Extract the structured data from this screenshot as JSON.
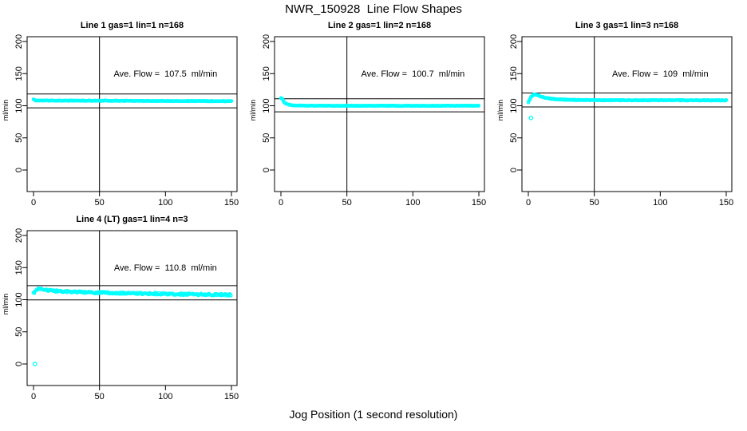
{
  "page_title": "NWR_150928  Line Flow Shapes",
  "xlabel_bottom": "Jog Position (1 second resolution)",
  "colors": {
    "marker": "#00FFFF",
    "axis": "#000000",
    "background": "#FFFFFF",
    "text": "#000000"
  },
  "chart_data": [
    {
      "type": "scatter",
      "title": "Line 1 gas=1 lin=1 n=168",
      "annotation": "Ave. Flow =  107.5  ml/min",
      "ave_flow": 107.5,
      "ave_flow_units": "ml/min",
      "ylabel": "ml/min",
      "xlim": [
        0,
        150
      ],
      "ylim": [
        0,
        200
      ],
      "xticks": [
        0,
        50,
        100,
        150
      ],
      "yticks": [
        0,
        50,
        100,
        150,
        200
      ],
      "vline_x": 50,
      "hlines": [
        118.3,
        96.8
      ],
      "annotation_pos": [
        100,
        149
      ],
      "profile": [
        [
          0,
          110
        ],
        [
          1,
          108.5
        ],
        [
          3,
          108.2
        ],
        [
          20,
          108
        ],
        [
          60,
          107.8
        ],
        [
          100,
          107.5
        ],
        [
          150,
          107.2
        ]
      ],
      "outliers": [],
      "noise": 0.45,
      "point_step": 0.5,
      "seed": 11
    },
    {
      "type": "scatter",
      "title": "Line 2 gas=1 lin=2 n=168",
      "annotation": "Ave. Flow =  100.7  ml/min",
      "ave_flow": 100.7,
      "ave_flow_units": "ml/min",
      "ylabel": "ml/min",
      "xlim": [
        0,
        150
      ],
      "ylim": [
        0,
        200
      ],
      "xticks": [
        0,
        50,
        100,
        150
      ],
      "yticks": [
        0,
        50,
        100,
        150,
        200
      ],
      "vline_x": 50,
      "hlines": [
        110.8,
        90.6
      ],
      "annotation_pos": [
        100,
        149
      ],
      "profile": [
        [
          0,
          112
        ],
        [
          1,
          111
        ],
        [
          2,
          107
        ],
        [
          3,
          104.5
        ],
        [
          5,
          102.3
        ],
        [
          8,
          101
        ],
        [
          12,
          100.4
        ],
        [
          30,
          100
        ],
        [
          90,
          100
        ],
        [
          150,
          100
        ]
      ],
      "outliers": [],
      "noise": 0.4,
      "point_step": 0.5,
      "seed": 22
    },
    {
      "type": "scatter",
      "title": "Line 3 gas=1 lin=3 n=168",
      "annotation": "Ave. Flow =  109  ml/min",
      "ave_flow": 109,
      "ave_flow_units": "ml/min",
      "ylabel": "ml/min",
      "xlim": [
        0,
        150
      ],
      "ylim": [
        0,
        200
      ],
      "xticks": [
        0,
        50,
        100,
        150
      ],
      "yticks": [
        0,
        50,
        100,
        150,
        200
      ],
      "vline_x": 50,
      "hlines": [
        119.9,
        98.1
      ],
      "annotation_pos": [
        100,
        149
      ],
      "profile": [
        [
          0,
          105
        ],
        [
          2,
          114
        ],
        [
          4,
          117.5
        ],
        [
          6,
          117
        ],
        [
          10,
          114
        ],
        [
          15,
          111.5
        ],
        [
          22,
          110
        ],
        [
          35,
          109
        ],
        [
          60,
          108.6
        ],
        [
          150,
          108.5
        ]
      ],
      "outliers": [
        [
          2,
          81
        ]
      ],
      "noise": 0.55,
      "point_step": 0.5,
      "seed": 33
    },
    {
      "type": "scatter",
      "title": "Line 4 (LT) gas=1 lin=4 n=3",
      "annotation": "Ave. Flow =  110.8  ml/min",
      "ave_flow": 110.8,
      "ave_flow_units": "ml/min",
      "ylabel": "ml/min",
      "xlim": [
        0,
        150
      ],
      "ylim": [
        0,
        200
      ],
      "xticks": [
        0,
        50,
        100,
        150
      ],
      "yticks": [
        0,
        50,
        100,
        150,
        200
      ],
      "vline_x": 50,
      "hlines": [
        121.9,
        99.7
      ],
      "annotation_pos": [
        100,
        149
      ],
      "profile": [
        [
          0,
          110
        ],
        [
          2,
          115
        ],
        [
          4,
          117
        ],
        [
          7,
          116
        ],
        [
          12,
          114.5
        ],
        [
          20,
          113
        ],
        [
          40,
          111.5
        ],
        [
          70,
          110
        ],
        [
          100,
          109
        ],
        [
          130,
          108.2
        ],
        [
          150,
          107.5
        ]
      ],
      "outliers": [
        [
          1,
          0
        ]
      ],
      "noise": 1.5,
      "point_step": 0.55,
      "seed": 44
    }
  ],
  "layout_hints": {
    "grid": "2 rows x 3 cols, bottom-middle and bottom-right cells empty",
    "legend": "none",
    "y_tick_labels_rotated": true
  }
}
